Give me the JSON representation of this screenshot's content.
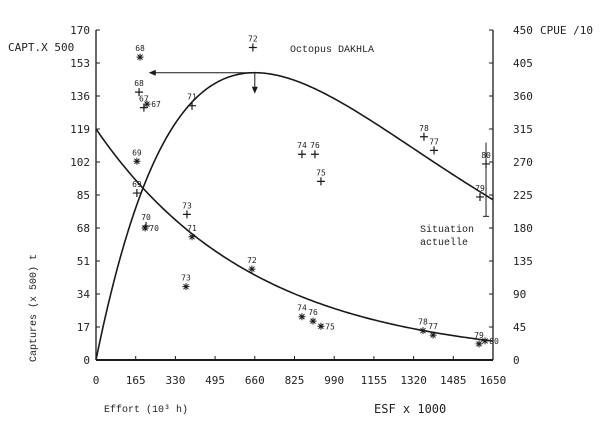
{
  "chart_data": {
    "type": "scatter",
    "title": "Octopus DAKHLA",
    "xlabel": "Effort (10³ h)",
    "xlabel_secondary": "ESF x 1000",
    "ylabel_left": "Captures (x 500) t",
    "ylabel_left_top": "CAPT.X 500",
    "ylabel_right": "CPUE /10",
    "annotation": "Situation actuelle",
    "xlim": [
      0,
      1650
    ],
    "ylim_left": [
      0,
      170
    ],
    "ylim_right": [
      0,
      450
    ],
    "x_ticks": [
      "0",
      "165",
      "330",
      "495",
      "660",
      "825",
      "990",
      "1155",
      "1320",
      "1485",
      "1650"
    ],
    "y_left_ticks": [
      "0",
      "17",
      "34",
      "51",
      "68",
      "85",
      "102",
      "119",
      "136",
      "153",
      "170"
    ],
    "y_right_ticks": [
      "0",
      "45",
      "90",
      "135",
      "180",
      "225",
      "270",
      "315",
      "360",
      "405",
      "450"
    ],
    "grid": false,
    "series": [
      {
        "marker": "+",
        "axis": "left",
        "points": [
          {
            "label": "68",
            "x": 179,
            "y": 138
          },
          {
            "label": "67",
            "x": 199,
            "y": 130
          },
          {
            "label": "69",
            "x": 170,
            "y": 86
          },
          {
            "label": "70",
            "x": 208,
            "y": 69
          },
          {
            "label": "71",
            "x": 399,
            "y": 131
          },
          {
            "label": "72",
            "x": 652,
            "y": 161
          },
          {
            "label": "73",
            "x": 378,
            "y": 75
          },
          {
            "label": "74",
            "x": 856,
            "y": 106
          },
          {
            "label": "76",
            "x": 910,
            "y": 106
          },
          {
            "label": "75",
            "x": 935,
            "y": 92
          },
          {
            "label": "78",
            "x": 1363,
            "y": 115
          },
          {
            "label": "77",
            "x": 1405,
            "y": 108
          },
          {
            "label": "79",
            "x": 1596,
            "y": 84
          },
          {
            "label": "80",
            "x": 1621,
            "y": 101
          }
        ],
        "curve": {
          "model": "C = a·f·exp(-f/660)",
          "peak": [
            660,
            148
          ],
          "end": [
            1650,
            80
          ]
        }
      },
      {
        "marker": "*",
        "axis": "right",
        "points": [
          {
            "label": "68",
            "x": 183,
            "y": 413
          },
          {
            "label": "67",
            "x": 212,
            "y": 349
          },
          {
            "label": "69",
            "x": 170,
            "y": 271
          },
          {
            "label": "70",
            "x": 204,
            "y": 180
          },
          {
            "label": "71",
            "x": 399,
            "y": 168
          },
          {
            "label": "72",
            "x": 648,
            "y": 124
          },
          {
            "label": "73",
            "x": 374,
            "y": 100
          },
          {
            "label": "74",
            "x": 856,
            "y": 59
          },
          {
            "label": "76",
            "x": 902,
            "y": 53
          },
          {
            "label": "75",
            "x": 935,
            "y": 46
          },
          {
            "label": "78",
            "x": 1359,
            "y": 40
          },
          {
            "label": "77",
            "x": 1401,
            "y": 34
          },
          {
            "label": "79",
            "x": 1592,
            "y": 22
          },
          {
            "label": "80",
            "x": 1617,
            "y": 26
          }
        ],
        "curve": {
          "model": "CPUE = 315·exp(-f/660)",
          "start": [
            0,
            315
          ],
          "end": [
            1650,
            26
          ]
        }
      }
    ],
    "error_bar": {
      "x": 1621,
      "y_low_left": 74,
      "y_high_left": 112
    },
    "msy_marker": {
      "x": 660,
      "y_left": 148
    }
  }
}
